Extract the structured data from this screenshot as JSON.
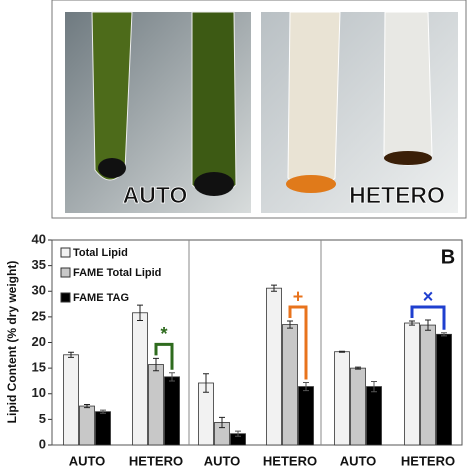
{
  "photo_labels": [
    "AUTO",
    "HETERO"
  ],
  "chart_data": {
    "type": "bar",
    "panel_label": "B",
    "ylabel": "Lipid Content (% dry weight)",
    "categories": [
      "AUTO",
      "HETERO",
      "AUTO",
      "HETERO",
      "AUTO",
      "HETERO"
    ],
    "series": [
      {
        "name": "Total Lipid",
        "color": "#f2f2f2",
        "values": [
          17.6,
          25.8,
          12.1,
          30.6,
          18.2,
          23.8
        ],
        "errors": [
          0.5,
          1.5,
          1.8,
          0.6,
          0.1,
          0.4
        ]
      },
      {
        "name": "FAME Total Lipid",
        "color": "#c8c8c8",
        "values": [
          7.6,
          15.7,
          4.4,
          23.5,
          15.0,
          23.4
        ],
        "errors": [
          0.3,
          1.2,
          1.0,
          0.7,
          0.2,
          1.0
        ]
      },
      {
        "name": "FAME TAG",
        "color": "#000000",
        "values": [
          6.5,
          13.3,
          2.2,
          11.4,
          11.4,
          21.6
        ],
        "errors": [
          0.3,
          0.8,
          0.5,
          0.8,
          1.0,
          0.3
        ]
      }
    ],
    "annotations": [
      {
        "text": "*",
        "color": "#2e6b1e"
      },
      {
        "text": "+",
        "color": "#e8731c"
      },
      {
        "text": "×",
        "color": "#1f3fcf"
      }
    ],
    "ylim": [
      0,
      40
    ],
    "yticks": [
      0,
      5,
      10,
      15,
      20,
      25,
      30,
      35,
      40
    ]
  }
}
